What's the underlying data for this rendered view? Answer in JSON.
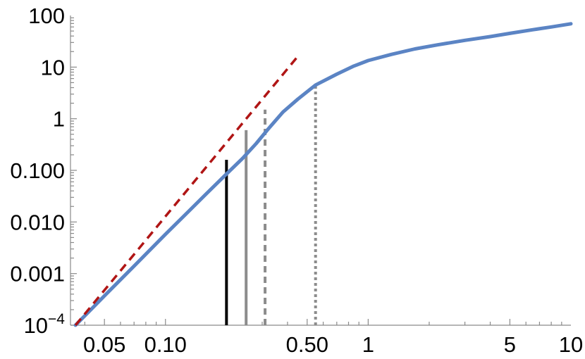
{
  "chart_data": {
    "type": "line",
    "title": "",
    "xlabel": "",
    "ylabel": "",
    "x_scale": "log",
    "y_scale": "log",
    "xlim": [
      0.034,
      10
    ],
    "ylim": [
      0.0001,
      100
    ],
    "grid": false,
    "x_ticks": [
      {
        "value": 0.05,
        "label": "0.05"
      },
      {
        "value": 0.1,
        "label": "0.10"
      },
      {
        "value": 0.5,
        "label": "0.50"
      },
      {
        "value": 1,
        "label": "1"
      },
      {
        "value": 5,
        "label": "5"
      },
      {
        "value": 10,
        "label": "10"
      }
    ],
    "y_ticks": [
      {
        "value": 0.0001,
        "label": "10",
        "sup": "−4"
      },
      {
        "value": 0.001,
        "label": "0.001"
      },
      {
        "value": 0.01,
        "label": "0.010"
      },
      {
        "value": 0.1,
        "label": "0.100"
      },
      {
        "value": 1,
        "label": "1"
      },
      {
        "value": 10,
        "label": "10"
      },
      {
        "value": 100,
        "label": "100"
      }
    ],
    "series": [
      {
        "style": "solid",
        "color": "#5b84c4",
        "x": [
          0.036,
          0.05,
          0.07,
          0.1,
          0.13,
          0.16,
          0.2,
          0.24,
          0.28,
          0.32,
          0.38,
          0.45,
          0.55,
          0.7,
          0.85,
          1.0,
          1.3,
          1.7,
          2.2,
          3,
          4,
          5,
          6.5,
          8,
          10
        ],
        "y": [
          0.0001,
          0.00037,
          0.0014,
          0.0058,
          0.016,
          0.036,
          0.085,
          0.17,
          0.33,
          0.62,
          1.35,
          2.4,
          4.5,
          7.3,
          10.5,
          13.4,
          17.6,
          22.5,
          27,
          33,
          39,
          45,
          53,
          60,
          69
        ]
      },
      {
        "style": "dashed",
        "color": "#b01515",
        "x": [
          0.036,
          0.46
        ],
        "y": [
          0.0001,
          18
        ]
      }
    ],
    "markers": [
      {
        "x": 0.2,
        "y": 0.16,
        "color": "#000000",
        "style": "solid"
      },
      {
        "x": 0.25,
        "y": 0.6,
        "color": "#8c8c8c",
        "style": "solid"
      },
      {
        "x": 0.31,
        "y": 1.5,
        "color": "#8c8c8c",
        "style": "dashed"
      },
      {
        "x": 0.55,
        "y": 4.5,
        "color": "#8c8c8c",
        "style": "dotted"
      }
    ]
  }
}
